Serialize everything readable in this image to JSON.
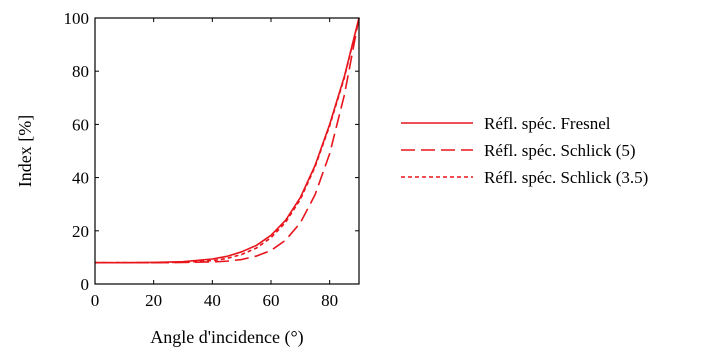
{
  "chart_data": {
    "type": "line",
    "title": "",
    "xlabel": "Angle d'incidence (°)",
    "ylabel": "Index [%]",
    "xlim": [
      0,
      90
    ],
    "ylim": [
      0,
      100
    ],
    "x_ticks": [
      0,
      20,
      40,
      60,
      80
    ],
    "y_ticks": [
      0,
      20,
      40,
      60,
      80,
      100
    ],
    "grid": false,
    "legend_position": "right",
    "color": "#e8141b",
    "x": [
      0,
      10,
      20,
      30,
      40,
      45,
      50,
      55,
      60,
      65,
      70,
      75,
      80,
      85,
      90
    ],
    "series": [
      {
        "name": "Réfl. spéc. Fresnel",
        "line_style": "solid",
        "values": [
          8,
          8,
          8.1,
          8.4,
          9.4,
          10.4,
          12.1,
          14.5,
          18.3,
          24,
          32.5,
          44.5,
          60,
          78,
          100
        ]
      },
      {
        "name": "Réfl. spéc. Schlick (5)",
        "line_style": "dashed",
        "values": [
          8,
          8,
          8,
          8.1,
          8.3,
          8.6,
          9.2,
          10.5,
          12.6,
          16.5,
          23,
          33.5,
          49,
          71,
          100
        ]
      },
      {
        "name": "Réfl. spéc. Schlick (3.5)",
        "line_style": "dotted",
        "values": [
          8,
          8,
          8,
          8.2,
          8.8,
          9.6,
          11.1,
          13.5,
          17.4,
          23.2,
          31.8,
          44,
          59.5,
          77.5,
          100
        ]
      }
    ]
  }
}
